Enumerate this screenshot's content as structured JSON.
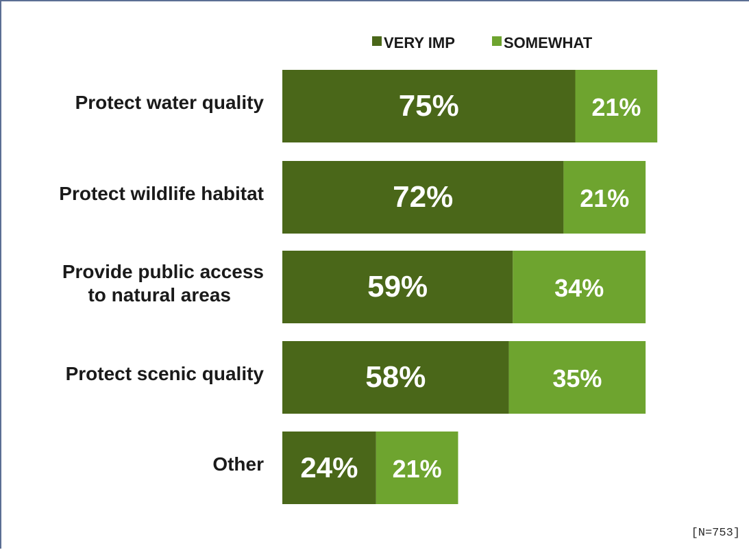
{
  "chart_data": {
    "type": "bar",
    "orientation": "horizontal",
    "stacked": true,
    "categories": [
      [
        "Protect water quality"
      ],
      [
        "Protect wildlife habitat"
      ],
      [
        "Provide public access",
        "to natural areas"
      ],
      [
        "Protect scenic quality"
      ],
      [
        "Other"
      ]
    ],
    "series": [
      {
        "name": "VERY IMP",
        "color": "#4a6719",
        "values": [
          75,
          72,
          59,
          58,
          24
        ],
        "labels": [
          "75%",
          "72%",
          "59%",
          "58%",
          "24%"
        ]
      },
      {
        "name": "SOMEWHAT",
        "color": "#6ea42f",
        "values": [
          21,
          21,
          34,
          35,
          21
        ],
        "labels": [
          "21%",
          "21%",
          "34%",
          "35%",
          "21%"
        ]
      }
    ],
    "xlim": [
      0,
      100
    ],
    "grid": false,
    "legend_position": "top",
    "note": "[N=753]"
  }
}
